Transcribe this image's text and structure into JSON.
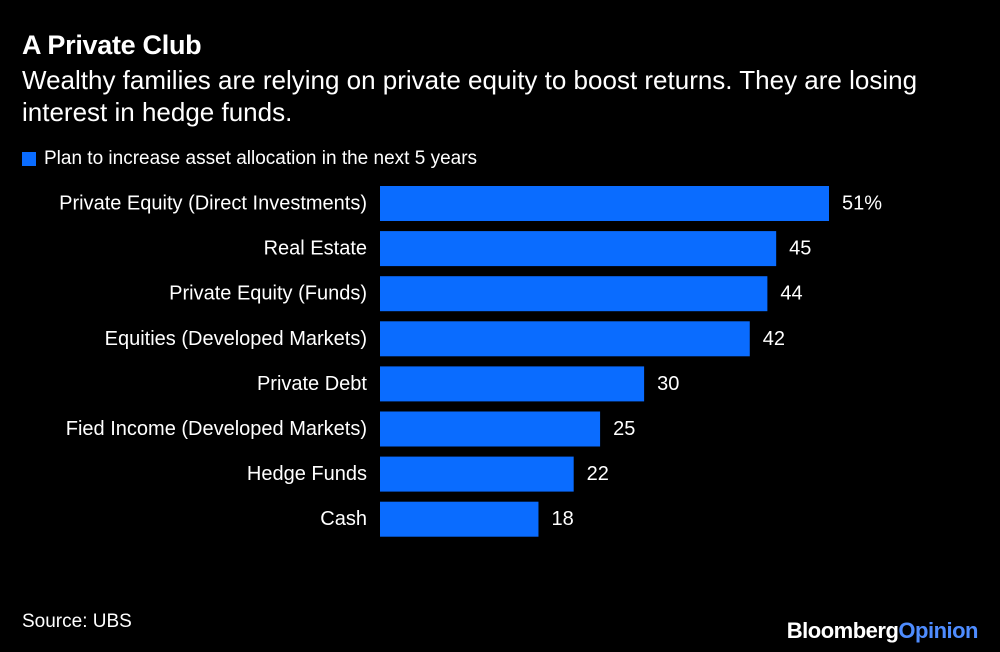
{
  "header": {
    "title": "A Private Club",
    "subtitle": "Wealthy families are relying on private equity to boost returns. They are losing interest in hedge funds."
  },
  "legend": {
    "label": "Plan to increase asset allocation in the next 5 years"
  },
  "colors": {
    "bar": "#0a6cff",
    "background": "#000000",
    "text": "#ffffff",
    "brand_accent": "#4e8cff"
  },
  "chart_data": {
    "type": "bar",
    "orientation": "horizontal",
    "title": "A Private Club",
    "categories": [
      "Private Equity (Direct Investments)",
      "Real Estate",
      "Private Equity (Funds)",
      "Equities (Developed Markets)",
      "Private Debt",
      "Fied Income (Developed Markets)",
      "Hedge Funds",
      "Cash"
    ],
    "series": [
      {
        "name": "Plan to increase asset allocation in the next 5 years",
        "values": [
          51,
          45,
          44,
          42,
          30,
          25,
          22,
          18
        ]
      }
    ],
    "value_labels": [
      "51%",
      "45",
      "44",
      "42",
      "30",
      "25",
      "22",
      "18"
    ],
    "xlim": [
      0,
      51
    ],
    "grid": false,
    "legend_position": "top-left"
  },
  "footer": {
    "source": "Source: UBS",
    "brand_main": "Bloomberg",
    "brand_accent": "Opinion"
  }
}
